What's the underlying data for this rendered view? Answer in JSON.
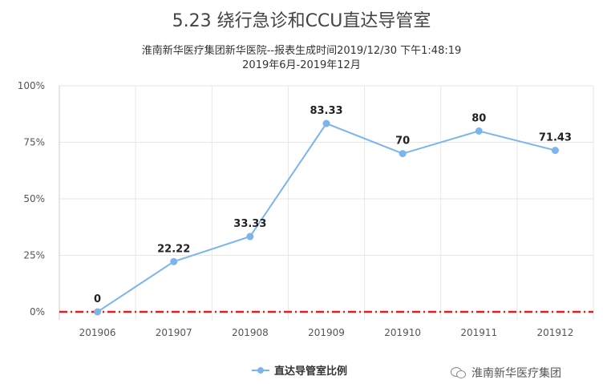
{
  "title": "5.23 绕行急诊和CCU直达导管室",
  "subtitle_line1": "淮南新华医疗集团新华医院--报表生成时间2019/12/30 下午1:48:19",
  "subtitle_line2": "2019年6月-2019年12月",
  "watermark": "淮南新华医疗集团",
  "watermark_icon": "wechat-icon",
  "colors": {
    "series": "#7cb5ec",
    "reference_line": "#e02020",
    "grid": "#e6e6e6"
  },
  "chart_data": {
    "type": "line",
    "categories": [
      "201906",
      "201907",
      "201908",
      "201909",
      "201910",
      "201911",
      "201912"
    ],
    "series": [
      {
        "name": "直达导管室比例",
        "values": [
          0,
          22.22,
          33.33,
          83.33,
          70,
          80,
          71.43
        ],
        "data_labels": [
          "0",
          "22.22",
          "33.33",
          "83.33",
          "70",
          "80",
          "71.43"
        ]
      }
    ],
    "ylim": [
      0,
      100
    ],
    "yticks": [
      "0%",
      "25%",
      "50%",
      "75%",
      "100%"
    ],
    "reference_line": {
      "value": 0,
      "style": "dash-dot"
    },
    "grid": true,
    "legend": "bottom-center"
  }
}
